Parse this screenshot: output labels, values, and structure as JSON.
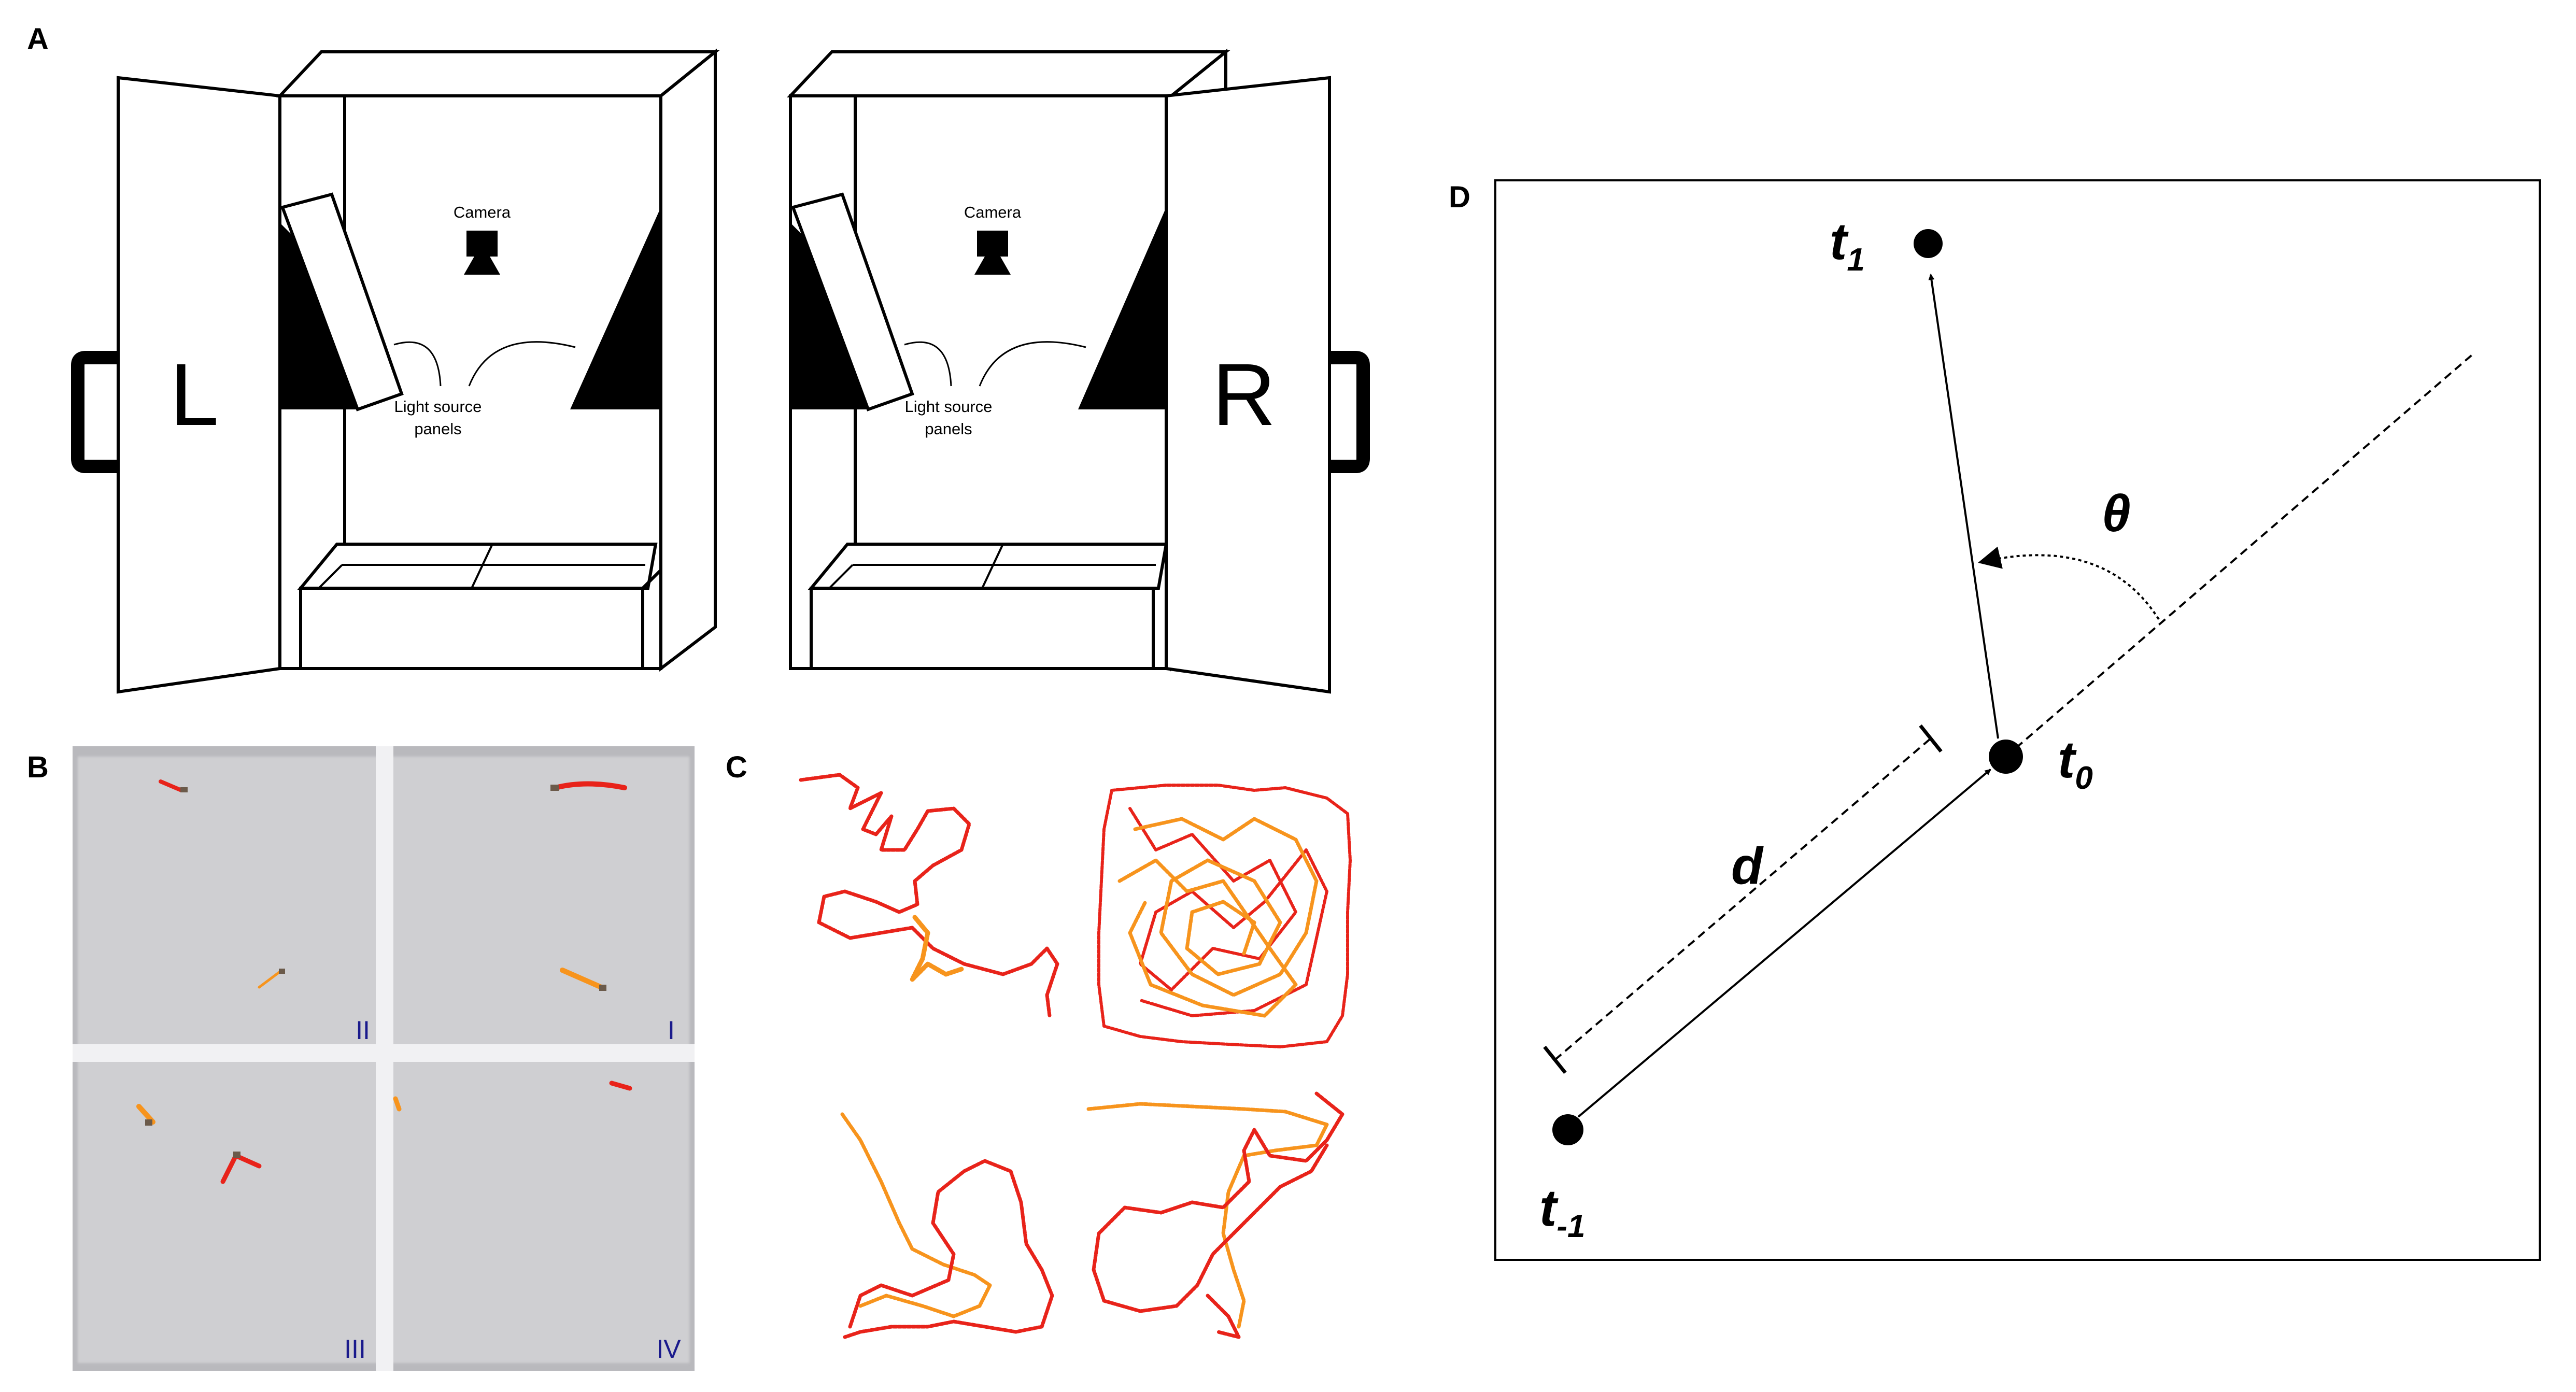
{
  "panels": {
    "A": {
      "letter": "A",
      "left_cabinet": {
        "door_letter": "L",
        "camera_label": "Camera",
        "light_label_line1": "Light source",
        "light_label_line2": "panels"
      },
      "right_cabinet": {
        "door_letter": "R",
        "camera_label": "Camera",
        "light_label_line1": "Light source",
        "light_label_line2": "panels"
      }
    },
    "B": {
      "letter": "B",
      "quadrant_labels": [
        "II",
        "I",
        "III",
        "IV"
      ]
    },
    "C": {
      "letter": "C"
    },
    "D": {
      "letter": "D",
      "points": {
        "t1": {
          "base": "t",
          "sub": "1"
        },
        "t0": {
          "base": "t",
          "sub": "0"
        },
        "tm1": {
          "base": "t",
          "sub": "-1"
        }
      },
      "angle_label": "θ",
      "distance_label": "d"
    }
  },
  "colors": {
    "track_red": "#e8231a",
    "track_orange": "#f7941d",
    "arena_gray": "#c9c9cc",
    "quadrant_label_blue": "#1a1a8c"
  }
}
